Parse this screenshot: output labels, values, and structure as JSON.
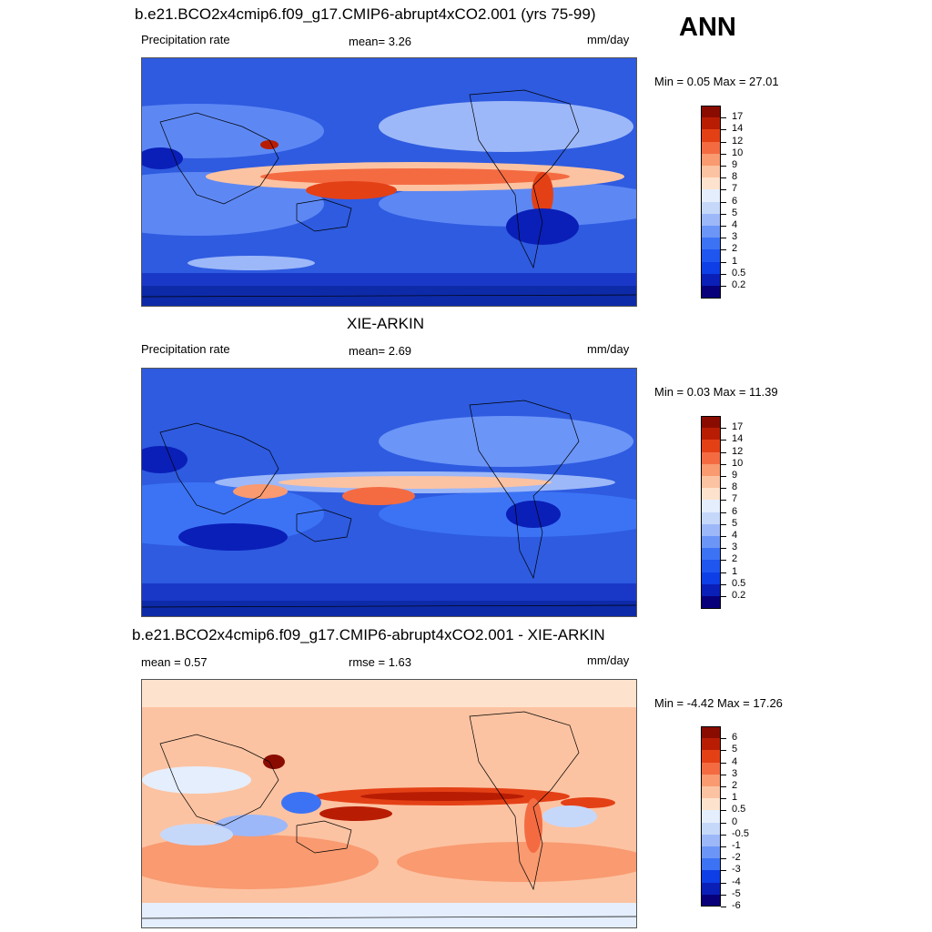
{
  "heading": {
    "season": "ANN"
  },
  "palettes": {
    "precip": [
      "#08007a",
      "#0a1fb8",
      "#0d3ee6",
      "#1f56f0",
      "#3c73f5",
      "#6b95f7",
      "#9db8f8",
      "#c6d8fa",
      "#e5eefc",
      "#fde3cd",
      "#fcc3a2",
      "#f99a70",
      "#f46b42",
      "#e44016",
      "#b81d04",
      "#8a0c00"
    ],
    "diff": [
      "#08007a",
      "#0a1fb8",
      "#0d3ee6",
      "#3c73f5",
      "#6b95f7",
      "#9db8f8",
      "#c6d8fa",
      "#e5eefc",
      "#fde3cd",
      "#fcc3a2",
      "#f99a70",
      "#f46b42",
      "#e44016",
      "#b81d04",
      "#8a0c00"
    ]
  },
  "chart_data": [
    {
      "type": "heatmap",
      "title": "b.e21.BCO2x4cmip6.f09_g17.CMIP6-abrupt4xCO2.001 (yrs 75-99)",
      "left_label": "Precipitation rate",
      "center_label": "mean=   3.26",
      "units": "mm/day",
      "minmax": "Min =   0.05 Max =  27.01",
      "colorbar_levels": [
        "17",
        "14",
        "12",
        "10",
        "9",
        "8",
        "7",
        "6",
        "5",
        "4",
        "3",
        "2",
        "1",
        "0.5",
        "0.2"
      ],
      "mean": 3.26,
      "min": 0.05,
      "max": 27.01
    },
    {
      "type": "heatmap",
      "title": "XIE-ARKIN",
      "left_label": "Precipitation rate",
      "center_label": "mean=   2.69",
      "units": "mm/day",
      "minmax": "Min =   0.03 Max =  11.39",
      "colorbar_levels": [
        "17",
        "14",
        "12",
        "10",
        "9",
        "8",
        "7",
        "6",
        "5",
        "4",
        "3",
        "2",
        "1",
        "0.5",
        "0.2"
      ],
      "mean": 2.69,
      "min": 0.03,
      "max": 11.39
    },
    {
      "type": "heatmap",
      "title": "b.e21.BCO2x4cmip6.f09_g17.CMIP6-abrupt4xCO2.001 - XIE-ARKIN",
      "left_label": "mean =   0.57",
      "center_label": "rmse =   1.63",
      "units": "mm/day",
      "minmax": "Min =  -4.42 Max =  17.26",
      "colorbar_levels": [
        "6",
        "5",
        "4",
        "3",
        "2",
        "1",
        "0.5",
        "0",
        "-0.5",
        "-1",
        "-2",
        "-3",
        "-4",
        "-5",
        "-6"
      ],
      "mean": 0.57,
      "rmse": 1.63,
      "min": -4.42,
      "max": 17.26
    }
  ]
}
